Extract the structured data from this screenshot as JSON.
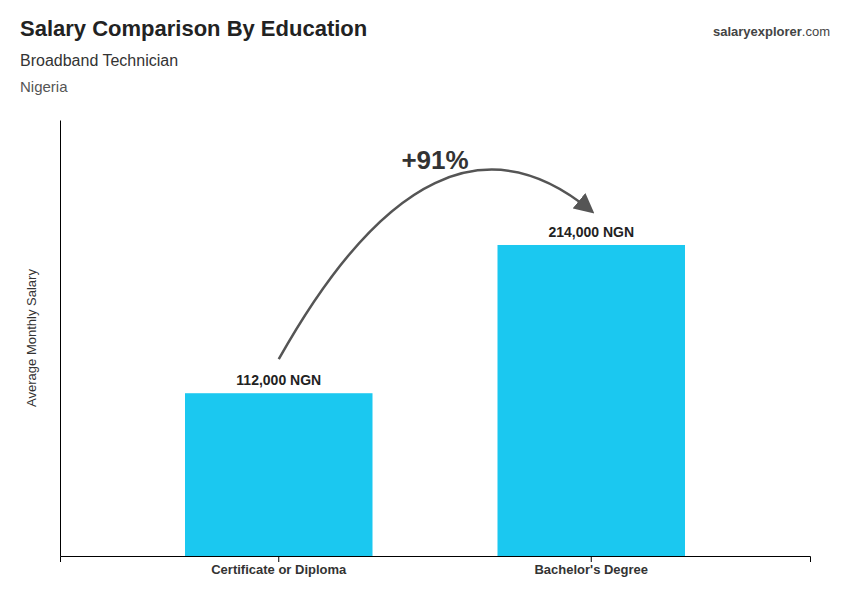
{
  "chart_data": {
    "type": "bar",
    "title": "Salary Comparison By Education",
    "subtitle": "Broadband Technician",
    "ylabel": "Average Monthly Salary",
    "annotations": [
      "Nigeria",
      "+91%",
      "salary",
      "explorer",
      ".com"
    ],
    "categories": [
      "Certificate or Diploma",
      "Bachelor's Degree"
    ],
    "values": [
      112000,
      214000
    ],
    "value_labels": [
      "112,000 NGN",
      "214,000 NGN"
    ],
    "data_labels": true,
    "color": "#1BC8F0",
    "ylim": [
      0,
      300000
    ],
    "tick_labels": "x",
    "grid": false
  }
}
